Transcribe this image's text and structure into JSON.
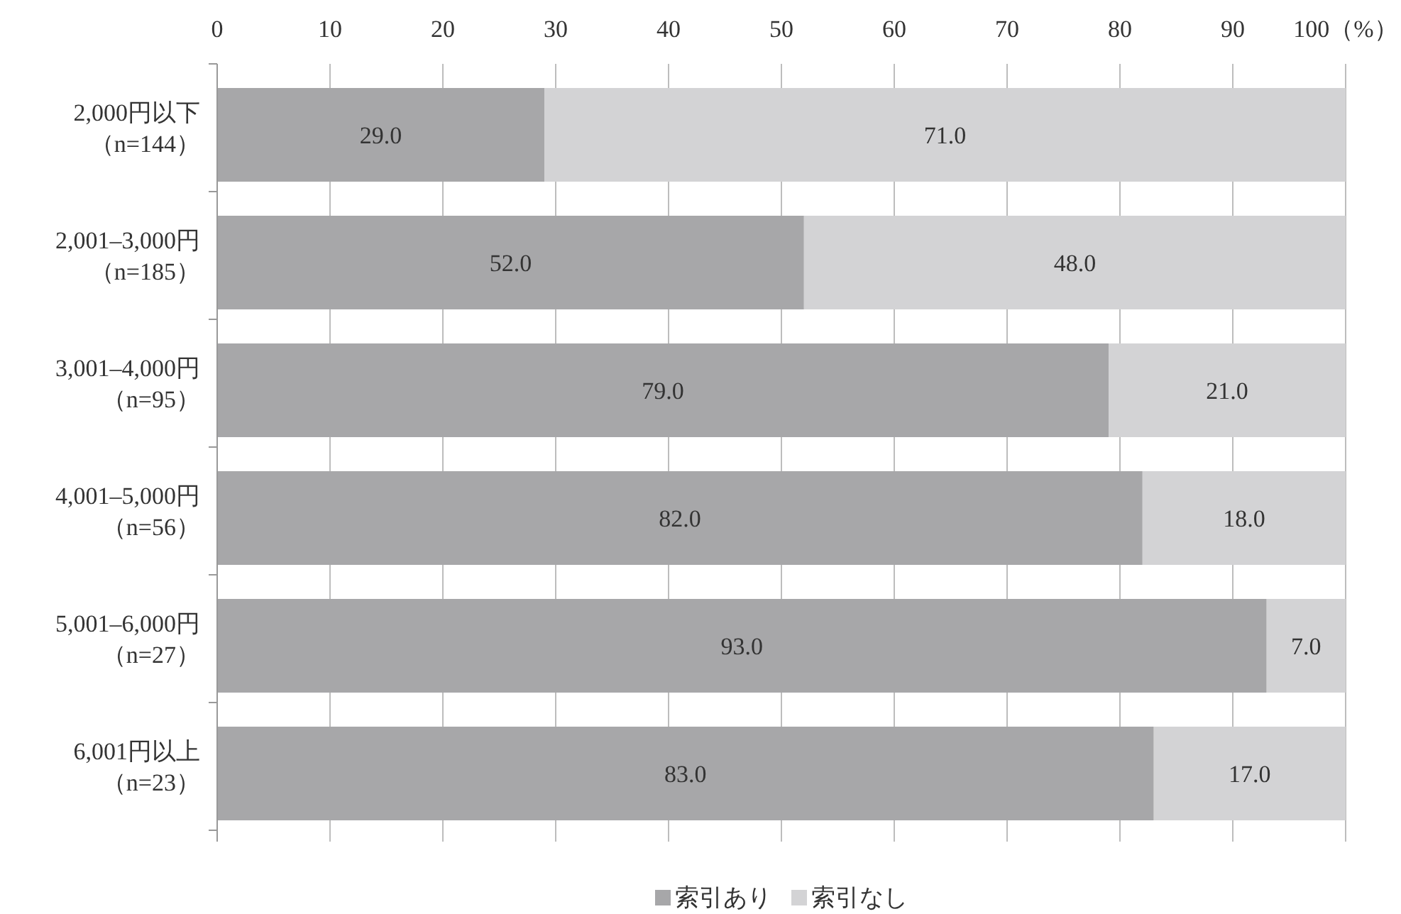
{
  "chart_data": {
    "type": "bar",
    "orientation": "horizontal",
    "stacked": true,
    "categories": [
      "2,000円以下（n=144）",
      "2,001–3,000円（n=185）",
      "3,001–4,000円（n=95）",
      "4,001–5,000円（n=56）",
      "5,001–6,000円（n=27）",
      "6,001円以上（n=23）"
    ],
    "series": [
      {
        "name": "索引あり",
        "color": "#a7a7a9",
        "values": [
          29.0,
          52.0,
          79.0,
          82.0,
          93.0,
          83.0
        ],
        "value_labels": [
          "29.0",
          "52.0",
          "79.0",
          "82.0",
          "93.0",
          "83.0"
        ]
      },
      {
        "name": "索引なし",
        "color": "#d3d3d5",
        "values": [
          71.0,
          48.0,
          21.0,
          18.0,
          7.0,
          17.0
        ],
        "value_labels": [
          "71.0",
          "48.0",
          "21.0",
          "18.0",
          "7.0",
          "17.0"
        ]
      }
    ],
    "xlim": [
      0,
      100
    ],
    "xticks": [
      0,
      10,
      20,
      30,
      40,
      50,
      60,
      70,
      80,
      90,
      {
        "value": 100,
        "label": "100（%）"
      }
    ],
    "grid": "x",
    "legend": "bottom"
  }
}
